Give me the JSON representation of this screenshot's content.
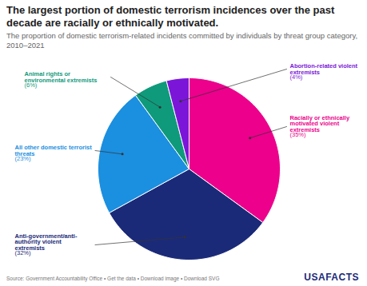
{
  "chart_data": {
    "type": "pie",
    "title": "The largest portion of domestic terrorism incidences over the past decade are racially or ethnically motivated.",
    "subtitle": "The proportion of domestic terrorism-related incidents committed by individuals by threat group category, 2010–2021",
    "categories": [
      "Racially or ethnically motivated violent extremists",
      "Anti-government/anti-authority violent extremists",
      "All other domestic terrorist threats",
      "Animal rights or environmental extremists",
      "Abortion-related violent extremists"
    ],
    "values": [
      35,
      32,
      23,
      6,
      4
    ],
    "value_labels": [
      "(35%)",
      "(32%)",
      "(23%)",
      "(6%)",
      "(4%)"
    ],
    "colors": [
      "#ec008c",
      "#1b2a78",
      "#1b8fe0",
      "#0f9a7b",
      "#7b16d9"
    ],
    "data_labels": true,
    "source": "Source: Government Accountability Office • Get the data • Download image • Download SVG",
    "logo": "USAFACTS"
  }
}
